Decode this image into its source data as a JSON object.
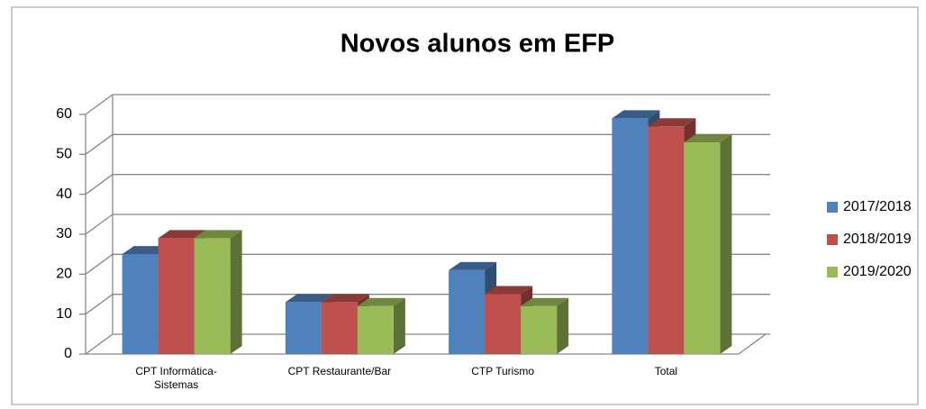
{
  "chart_data": {
    "type": "bar3d",
    "title": "Novos alunos em EFP",
    "categories": [
      "CPT Informática-Sistemas",
      "CPT Restaurante/Bar",
      "CTP Turismo",
      "Total"
    ],
    "series": [
      {
        "name": "2017/2018",
        "color": "#4f81bd",
        "values": [
          25,
          13,
          21,
          59
        ]
      },
      {
        "name": "2018/2019",
        "color": "#c0504d",
        "values": [
          29,
          13,
          15,
          57
        ]
      },
      {
        "name": "2019/2020",
        "color": "#9bbb59",
        "values": [
          29,
          12,
          12,
          53
        ]
      }
    ],
    "ylim": [
      0,
      60
    ],
    "yticks": [
      0,
      10,
      20,
      30,
      40,
      50,
      60
    ],
    "grid": true,
    "legend": "right"
  }
}
